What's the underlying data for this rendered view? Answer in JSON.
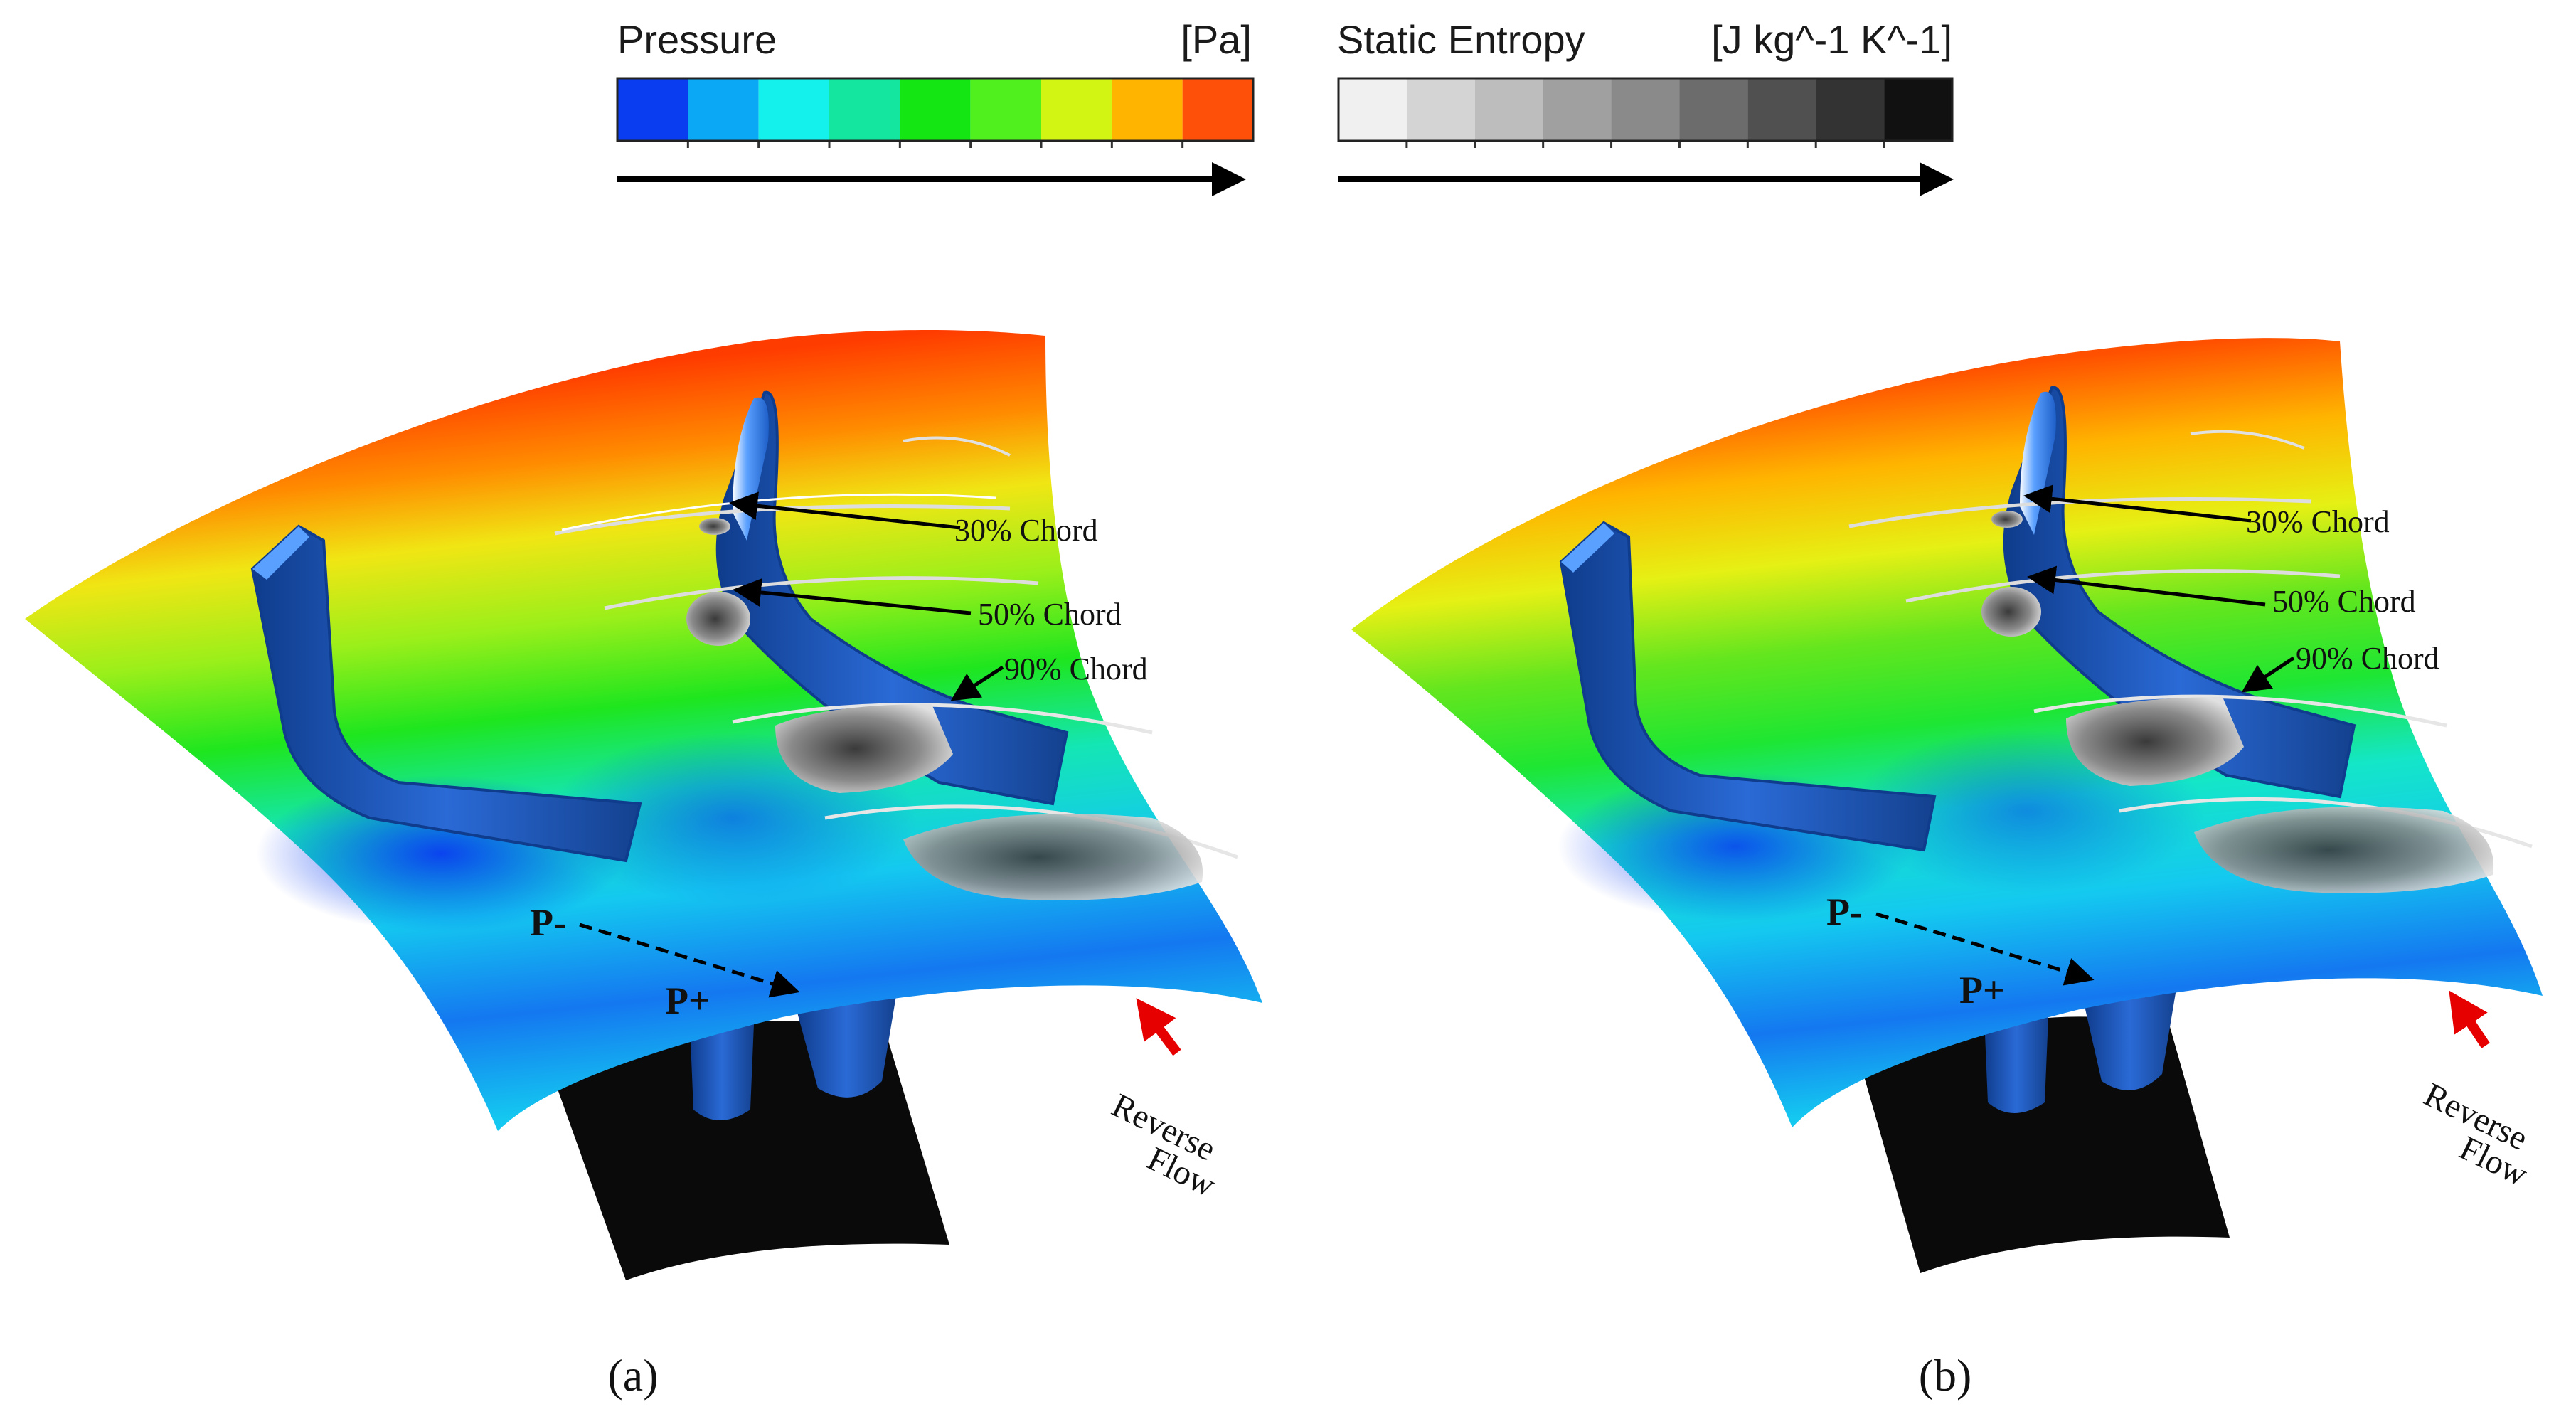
{
  "legends": {
    "pressure": {
      "title": "Pressure",
      "unit": "[Pa]",
      "colors": [
        "#0a3cf0",
        "#0aa8f5",
        "#14f0eb",
        "#14e6a0",
        "#14e614",
        "#50f01e",
        "#d2f514",
        "#ffb400",
        "#ff500a"
      ]
    },
    "entropy": {
      "title": "Static Entropy",
      "unit": "[J kg^-1 K^-1]",
      "colors": [
        "#f0f0f0",
        "#d4d4d4",
        "#bdbdbd",
        "#a0a0a0",
        "#8a8a8a",
        "#6c6c6c",
        "#505050",
        "#333333",
        "#111111"
      ]
    }
  },
  "annotations": {
    "chord30": "30% Chord",
    "chord50": "50% Chord",
    "chord90": "90% Chord",
    "p_minus": "P-",
    "p_plus": "P+",
    "reverse": "Reverse",
    "flow": "Flow"
  },
  "panels": {
    "a_label": "(a)",
    "b_label": "(b)"
  },
  "colors": {
    "blade": "#1e5fc8",
    "blade_dark": "#0f3c8c",
    "hub": "#0a0a0a",
    "arrow_red": "#e60000"
  }
}
